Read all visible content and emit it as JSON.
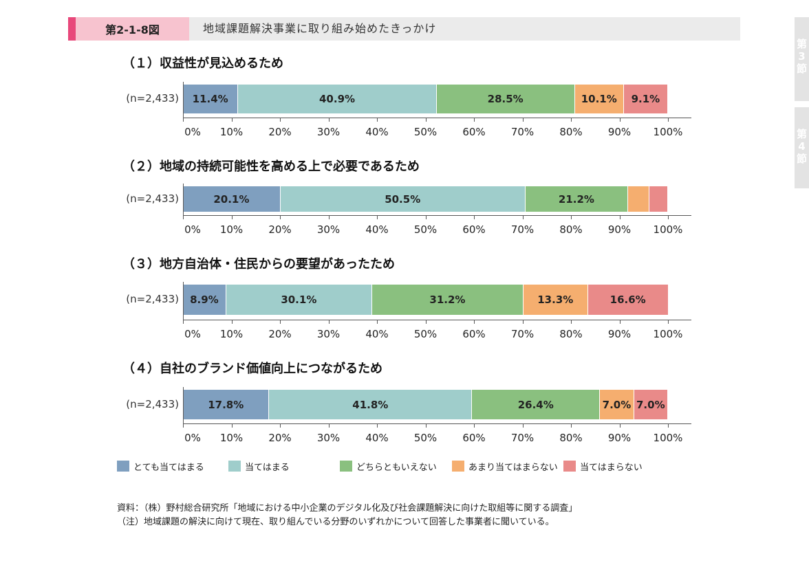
{
  "figure": {
    "number": "第2-1-8図",
    "title": "地域課題解決事業に取り組み始めたきっかけ",
    "accent_color": "#e8477a",
    "number_box_color": "#f7c3cf"
  },
  "side_tabs": [
    {
      "chars": [
        "第",
        "3",
        "節"
      ]
    },
    {
      "chars": [
        "第",
        "4",
        "節"
      ]
    }
  ],
  "chart_data": [
    {
      "type": "bar",
      "orientation": "horizontal-stacked-100",
      "title": "（１）収益性が見込めるため",
      "category": "(n=2,433)",
      "series_values": [
        11.4,
        40.9,
        28.5,
        10.1,
        9.1
      ],
      "labels": [
        "11.4%",
        "40.9%",
        "28.5%",
        "10.1%",
        "9.1%"
      ],
      "xlim": [
        0,
        100
      ]
    },
    {
      "type": "bar",
      "orientation": "horizontal-stacked-100",
      "title": "（２）地域の持続可能性を高める上で必要であるため",
      "category": "(n=2,433)",
      "series_values": [
        20.1,
        50.5,
        21.2,
        4.3,
        3.9
      ],
      "labels": [
        "20.1%",
        "50.5%",
        "21.2%",
        "",
        ""
      ],
      "xlim": [
        0,
        100
      ]
    },
    {
      "type": "bar",
      "orientation": "horizontal-stacked-100",
      "title": "（３）地方自治体・住民からの要望があったため",
      "category": "(n=2,433)",
      "series_values": [
        8.9,
        30.1,
        31.2,
        13.3,
        16.6
      ],
      "labels": [
        "8.9%",
        "30.1%",
        "31.2%",
        "13.3%",
        "16.6%"
      ],
      "xlim": [
        0,
        100
      ]
    },
    {
      "type": "bar",
      "orientation": "horizontal-stacked-100",
      "title": "（４）自社のブランド価値向上につながるため",
      "category": "(n=2,433)",
      "series_values": [
        17.8,
        41.8,
        26.4,
        7.0,
        7.0
      ],
      "labels": [
        "17.8%",
        "41.8%",
        "26.4%",
        "7.0%",
        "7.0%"
      ],
      "xlim": [
        0,
        100
      ]
    }
  ],
  "series": [
    {
      "name": "とても当てはまる",
      "color": "#7f9fbf"
    },
    {
      "name": "当てはまる",
      "color": "#9fcdcb"
    },
    {
      "name": "どちらともいえない",
      "color": "#8ac07f"
    },
    {
      "name": "あまり当てはまらない",
      "color": "#f5ae6f"
    },
    {
      "name": "当てはまらない",
      "color": "#e98a89"
    }
  ],
  "axis_ticks": [
    "0%",
    "10%",
    "20%",
    "30%",
    "40%",
    "50%",
    "60%",
    "70%",
    "80%",
    "90%",
    "100%"
  ],
  "notes": {
    "source": "資料：（株）野村総合研究所「地域における中小企業のデジタル化及び社会課題解決に向けた取組等に関する調査」",
    "note": "（注）地域課題の解決に向けて現在、取り組んでいる分野のいずれかについて回答した事業者に聞いている。"
  }
}
